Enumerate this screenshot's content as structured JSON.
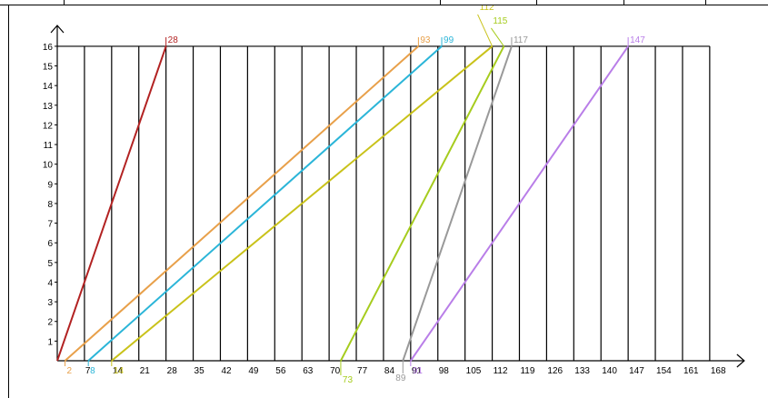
{
  "chart_data": {
    "type": "line",
    "title": "",
    "xlabel": "",
    "ylabel": "",
    "xlim": [
      0,
      168
    ],
    "ylim": [
      0,
      16
    ],
    "grid": "vertical lines every 7 units from 7 to 168, top border at y=16",
    "x_ticks": [
      "7",
      "14",
      "21",
      "28",
      "35",
      "42",
      "49",
      "56",
      "63",
      "70",
      "77",
      "84",
      "91",
      "98",
      "105",
      "112",
      "119",
      "126",
      "133",
      "140",
      "147",
      "154",
      "161",
      "168"
    ],
    "y_ticks": [
      "1",
      "2",
      "3",
      "4",
      "5",
      "6",
      "7",
      "8",
      "9",
      "10",
      "11",
      "12",
      "13",
      "14",
      "15",
      "16"
    ],
    "series": [
      {
        "color": "#b22222",
        "points": [
          [
            0,
            0
          ],
          [
            28,
            16
          ]
        ],
        "start_label": "",
        "end_label": "28"
      },
      {
        "color": "#e8a04a",
        "points": [
          [
            2,
            0
          ],
          [
            93,
            16
          ]
        ],
        "start_label": "2",
        "end_label": "93"
      },
      {
        "color": "#2bb5d8",
        "points": [
          [
            8,
            0
          ],
          [
            99,
            16
          ]
        ],
        "start_label": "8",
        "end_label": "99"
      },
      {
        "color": "#c9c21a",
        "points": [
          [
            14,
            0
          ],
          [
            112,
            16
          ]
        ],
        "start_label": "14",
        "end_label": "112"
      },
      {
        "color": "#a6cc1e",
        "points": [
          [
            73,
            0
          ],
          [
            115,
            16
          ]
        ],
        "start_label": "73",
        "end_label": "115"
      },
      {
        "color": "#999999",
        "points": [
          [
            89,
            0
          ],
          [
            117,
            16
          ]
        ],
        "start_label": "89",
        "end_label": "117"
      },
      {
        "color": "#b97ee8",
        "points": [
          [
            91,
            0
          ],
          [
            147,
            16
          ]
        ],
        "start_label": "91",
        "end_label": "147"
      }
    ]
  }
}
